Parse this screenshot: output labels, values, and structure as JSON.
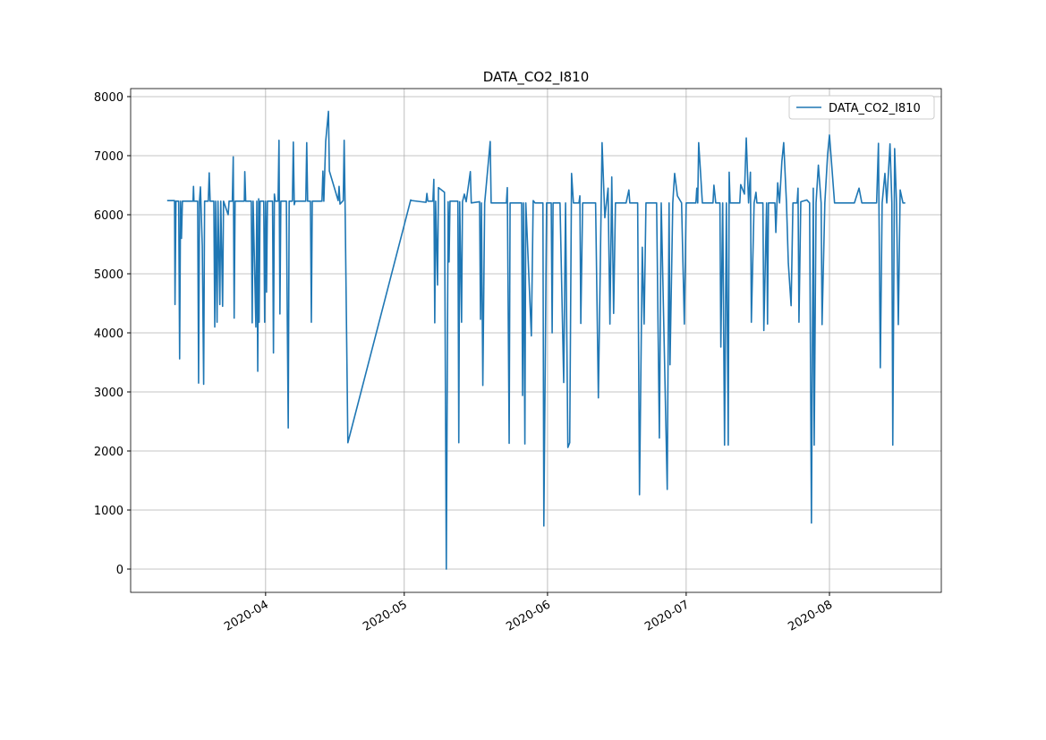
{
  "chart_data": {
    "type": "line",
    "title": "DATA_CO2_I810",
    "x": [
      18331.7,
      18333.3,
      18333.4,
      18333.6,
      18334.2,
      18334.4,
      18334.6,
      18334.8,
      18335.0,
      18337.3,
      18337.4,
      18337.5,
      18338.3,
      18338.5,
      18338.7,
      18338.9,
      18339.3,
      18339.6,
      18339.8,
      18340.6,
      18340.8,
      18341.0,
      18341.8,
      18342.0,
      18342.2,
      18342.5,
      18342.7,
      18343.1,
      18343.3,
      18343.7,
      18343.9,
      18344.9,
      18345.1,
      18345.8,
      18346.0,
      18346.2,
      18346.4,
      18348.4,
      18348.5,
      18348.7,
      18349.9,
      18350.1,
      18350.3,
      18350.9,
      18351.1,
      18351.3,
      18351.5,
      18351.6,
      18351.8,
      18352.6,
      18352.8,
      18353.0,
      18353.2,
      18353.4,
      18354.5,
      18354.7,
      18354.9,
      18355.1,
      18355.7,
      18355.9,
      18356.1,
      18356.3,
      18357.5,
      18357.7,
      18357.9,
      18358.1,
      18358.8,
      18359.0,
      18359.2,
      18359.4,
      18360.6,
      18361.7,
      18361.9,
      18362.1,
      18362.7,
      18362.9,
      18363.1,
      18365.2,
      18365.4,
      18365.6,
      18366.0,
      18366.6,
      18366.8,
      18368.7,
      18368.9,
      18369.1,
      18369.8,
      18370.0,
      18370.2,
      18370.8,
      18384.4,
      18384.6,
      18387.7,
      18387.9,
      18388.1,
      18389.2,
      18389.4,
      18389.6,
      18389.8,
      18390.2,
      18390.4,
      18391.7,
      18392.1,
      18392.5,
      18392.7,
      18392.9,
      18394.6,
      18394.8,
      18395.0,
      18395.4,
      18395.6,
      18396.0,
      18396.4,
      18397.3,
      18397.5,
      18399.3,
      18399.5,
      18399.7,
      18400.0,
      18400.4,
      18401.6,
      18401.8,
      18405.1,
      18405.3,
      18405.7,
      18405.9,
      18406.4,
      18408.4,
      18408.6,
      18408.8,
      18409.1,
      18409.3,
      18410.5,
      18410.9,
      18411.3,
      18413.0,
      18413.2,
      18413.8,
      18414.8,
      18415.0,
      18415.2,
      18416.7,
      18417.5,
      18417.9,
      18418.4,
      18418.8,
      18419.2,
      18419.6,
      18420.8,
      18421.0,
      18421.2,
      18421.6,
      18424.4,
      18425.0,
      18425.8,
      18426.4,
      18427.1,
      18427.5,
      18427.9,
      18428.3,
      18428.7,
      18431.0,
      18431.6,
      18431.8,
      18433.5,
      18433.9,
      18434.5,
      18434.9,
      18435.3,
      18437.6,
      18438.2,
      18438.6,
      18439.9,
      18440.3,
      18440.5,
      18441.1,
      18441.5,
      18442.1,
      18443.0,
      18443.6,
      18444.0,
      18446.1,
      18446.3,
      18446.5,
      18446.7,
      18447.1,
      18447.5,
      18449.8,
      18450.0,
      18450.4,
      18451.3,
      18451.5,
      18451.9,
      18452.3,
      18452.7,
      18453.1,
      18453.3,
      18453.5,
      18455.6,
      18455.8,
      18456.6,
      18457.0,
      18457.5,
      18457.9,
      18458.1,
      18458.7,
      18459.1,
      18459.3,
      18460.6,
      18460.8,
      18461.4,
      18461.6,
      18461.8,
      18463.2,
      18463.4,
      18463.8,
      18464.2,
      18464.7,
      18465.1,
      18465.7,
      18466.1,
      18466.7,
      18467.1,
      18468.0,
      18468.2,
      18468.4,
      18468.8,
      18470.1,
      18470.7,
      18471.1,
      18471.5,
      18471.7,
      18472.1,
      18472.6,
      18473.2,
      18473.4,
      18474.0,
      18474.6,
      18475.0,
      18476.1,
      18480.4,
      18481.4,
      18482.0,
      18485.2,
      18485.6,
      18486.0,
      18486.4,
      18487.0,
      18487.4,
      18488.1,
      18488.5,
      18488.7,
      18489.1,
      18489.5,
      18489.9,
      18490.3,
      18490.9,
      18491.4
    ],
    "series": [
      {
        "name": "DATA_CO2_I810",
        "color": "#1f77b4",
        "values": [
          6240,
          6240,
          4480,
          6230,
          6230,
          3560,
          6230,
          5600,
          6230,
          6230,
          6480,
          6230,
          6230,
          3150,
          6230,
          6470,
          5470,
          3130,
          6230,
          6230,
          6710,
          6230,
          6230,
          4100,
          6230,
          4180,
          6230,
          4480,
          6230,
          4450,
          6230,
          6000,
          6230,
          6230,
          6980,
          4250,
          6230,
          6230,
          6730,
          6230,
          6230,
          4170,
          6230,
          4100,
          6230,
          3350,
          6270,
          4180,
          6230,
          6230,
          4180,
          6230,
          4690,
          6230,
          6230,
          3660,
          6350,
          6230,
          6230,
          7260,
          4320,
          6230,
          6230,
          4180,
          2390,
          6230,
          6230,
          7230,
          6170,
          6230,
          6230,
          6230,
          7220,
          6230,
          6230,
          4180,
          6230,
          6230,
          6740,
          6230,
          7240,
          7750,
          6740,
          6240,
          6480,
          6180,
          6240,
          7260,
          6160,
          2140,
          6250,
          6240,
          6210,
          6360,
          6230,
          6230,
          6600,
          4170,
          6230,
          4810,
          6460,
          6380,
          0,
          6220,
          5200,
          6230,
          6230,
          2140,
          6220,
          4180,
          6220,
          6350,
          6220,
          6730,
          6200,
          6220,
          4230,
          6200,
          3110,
          6200,
          7240,
          6200,
          6200,
          6460,
          2130,
          6200,
          6200,
          6200,
          2940,
          6200,
          2120,
          6200,
          3950,
          6240,
          6200,
          6200,
          730,
          6200,
          6200,
          4000,
          6200,
          6200,
          3160,
          6200,
          2060,
          2140,
          6700,
          6200,
          6200,
          6320,
          4160,
          6200,
          6200,
          2900,
          7220,
          5950,
          6450,
          4150,
          6640,
          4330,
          6200,
          6200,
          6420,
          6200,
          6200,
          1260,
          5450,
          4150,
          6200,
          6200,
          2220,
          6200,
          1350,
          6200,
          3460,
          6200,
          6700,
          6320,
          6200,
          4150,
          6200,
          6200,
          6450,
          6200,
          7220,
          6720,
          6200,
          6200,
          6500,
          6200,
          6200,
          3760,
          6200,
          2100,
          6200,
          2100,
          6720,
          6200,
          6200,
          6510,
          6350,
          7300,
          6200,
          6720,
          4180,
          6200,
          6380,
          6200,
          6200,
          4040,
          6200,
          4150,
          6200,
          6200,
          5700,
          6540,
          6200,
          6900,
          7220,
          6200,
          5180,
          4460,
          6200,
          6200,
          6450,
          4180,
          6220,
          6250,
          6200,
          780,
          6450,
          2100,
          6200,
          6840,
          6200,
          4140,
          6200,
          7020,
          7350,
          6200,
          6200,
          6450,
          6200,
          6200,
          7210,
          3410,
          6200,
          6700,
          6200,
          7200,
          6200,
          2100,
          7120,
          6200,
          4140,
          6420,
          6200,
          6200
        ]
      }
    ],
    "xlim": [
      18323.8,
      18499.2
    ],
    "xticks": [
      {
        "value": 18353,
        "label": "2020-04"
      },
      {
        "value": 18383,
        "label": "2020-05"
      },
      {
        "value": 18414,
        "label": "2020-06"
      },
      {
        "value": 18444,
        "label": "2020-07"
      },
      {
        "value": 18475,
        "label": "2020-08"
      }
    ],
    "ylim": [
      -394,
      8136
    ],
    "yticks": [
      0,
      1000,
      2000,
      3000,
      4000,
      5000,
      6000,
      7000,
      8000
    ],
    "grid": true,
    "legend": "upper right"
  }
}
